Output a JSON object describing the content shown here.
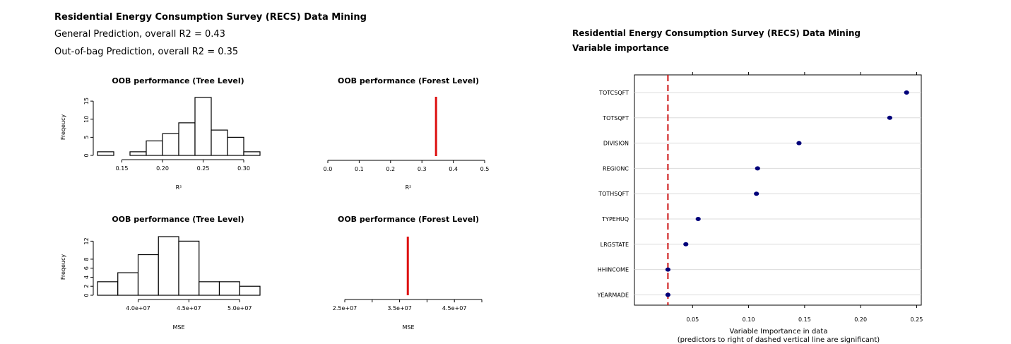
{
  "header": {
    "title": "Residential Energy Consumption Survey (RECS) Data Mining",
    "general_prediction": "General Prediction, overall R2 = 0.43",
    "oob_prediction": "Out-of-bag Prediction, overall R2 = 0.35"
  },
  "right_header": {
    "title": "Residential Energy Consumption Survey (RECS) Data Mining",
    "subtitle": "Variable importance"
  },
  "chart_data": [
    {
      "type": "bar",
      "title": "OOB performance (Tree Level)",
      "xlabel": "R²",
      "ylabel": "Freqeucy",
      "bins": [
        [
          0.12,
          0.14
        ],
        [
          0.14,
          0.16
        ],
        [
          0.16,
          0.18
        ],
        [
          0.18,
          0.2
        ],
        [
          0.2,
          0.22
        ],
        [
          0.22,
          0.24
        ],
        [
          0.24,
          0.26
        ],
        [
          0.26,
          0.28
        ],
        [
          0.28,
          0.3
        ],
        [
          0.3,
          0.32
        ]
      ],
      "values": [
        1,
        0,
        1,
        4,
        6,
        9,
        16,
        7,
        5,
        1
      ],
      "xticks": [
        0.15,
        0.2,
        0.25,
        0.3
      ],
      "xtick_labels": [
        "0.15",
        "0.20",
        "0.25",
        "0.30"
      ],
      "yticks": [
        0,
        5,
        10,
        15
      ],
      "ylim": [
        0,
        16
      ],
      "xlim": [
        0.12,
        0.32
      ]
    },
    {
      "type": "bar",
      "title": "OOB performance (Forest Level)",
      "xlabel": "R²",
      "ylabel": "",
      "values": [
        0.345
      ],
      "xticks": [
        0.0,
        0.1,
        0.2,
        0.3,
        0.4,
        0.5
      ],
      "xtick_labels": [
        "0.0",
        "0.1",
        "0.2",
        "0.3",
        "0.4",
        "0.5"
      ],
      "xlim": [
        0.0,
        0.5
      ],
      "bar_color": "#dd1111"
    },
    {
      "type": "bar",
      "title": "OOB performance (Tree Level)",
      "xlabel": "MSE",
      "ylabel": "Freqeucy",
      "bins": [
        [
          36000000,
          38000000
        ],
        [
          38000000,
          40000000
        ],
        [
          40000000,
          42000000
        ],
        [
          42000000,
          44000000
        ],
        [
          44000000,
          46000000
        ],
        [
          46000000,
          48000000
        ],
        [
          48000000,
          50000000
        ],
        [
          50000000,
          52000000
        ]
      ],
      "values": [
        3,
        5,
        9,
        13,
        12,
        3,
        3,
        2
      ],
      "xticks": [
        40000000,
        45000000,
        50000000
      ],
      "xtick_labels": [
        "4.0e+07",
        "4.5e+07",
        "5.0e+07"
      ],
      "yticks": [
        0,
        2,
        4,
        6,
        8,
        12
      ],
      "ylim": [
        0,
        13
      ],
      "xlim": [
        36000000,
        52000000
      ]
    },
    {
      "type": "bar",
      "title": "OOB performance (Forest Level)",
      "xlabel": "MSE",
      "ylabel": "",
      "values": [
        36500000
      ],
      "xticks": [
        25000000,
        30000000,
        35000000,
        40000000,
        45000000,
        50000000
      ],
      "xtick_labels": [
        "2.5e+07",
        "",
        "3.5e+07",
        "",
        "4.5e+07",
        ""
      ],
      "xlim": [
        25000000,
        50000000
      ],
      "bar_color": "#dd1111"
    },
    {
      "type": "scatter",
      "title": "",
      "xlabel": "Variable Importance in data",
      "xlabel2": "(predictors to right of dashed vertical line are significant)",
      "categories": [
        "TOTCSQFT",
        "TOTSQFT",
        "DIVISION",
        "REGIONC",
        "TOTHSQFT",
        "TYPEHUQ",
        "LRGSTATE",
        "HHINCOME",
        "YEARMADE"
      ],
      "values": [
        0.241,
        0.226,
        0.145,
        0.108,
        0.107,
        0.055,
        0.044,
        0.028,
        0.028
      ],
      "threshold": 0.028,
      "xticks": [
        0.05,
        0.1,
        0.15,
        0.2,
        0.25
      ],
      "xtick_labels": [
        "0.05",
        "0.10",
        "0.15",
        "0.20",
        "0.25"
      ],
      "xlim": [
        0.0,
        0.25
      ],
      "point_color": "#00007a",
      "threshold_color": "#cc1111",
      "grid": true
    }
  ]
}
